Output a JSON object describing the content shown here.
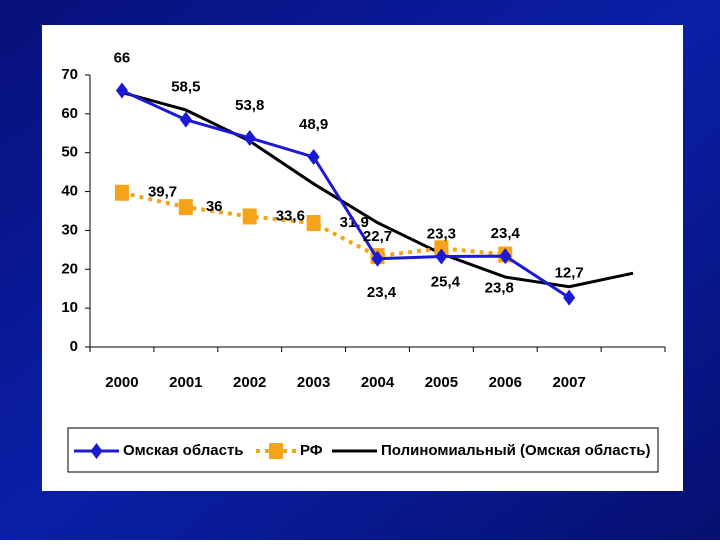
{
  "chart_data": {
    "type": "line",
    "categories": [
      "2000",
      "2001",
      "2002",
      "2003",
      "2004",
      "2005",
      "2006",
      "2007",
      null
    ],
    "series": [
      {
        "name": "Омская область",
        "color": "#1a1ad6",
        "marker": "diamond",
        "dashed": false,
        "values": [
          66,
          58.5,
          53.8,
          48.9,
          22.7,
          23.3,
          23.4,
          12.7,
          null
        ],
        "value_labels": [
          "66",
          "58,5",
          "53,8",
          "48,9",
          "22,7",
          "23,3",
          "23,4",
          "12,7",
          null
        ]
      },
      {
        "name": "РФ",
        "color": "#f5a318",
        "marker": "square",
        "dashed": true,
        "values": [
          39.7,
          36,
          33.6,
          31.9,
          23.4,
          25.4,
          23.8,
          null,
          null
        ],
        "value_labels": [
          "39,7",
          "36",
          "33,6",
          "31,9",
          "23,4",
          "25,4",
          "23,8",
          null,
          null
        ]
      },
      {
        "name": "Полиномиальный (Омская область)",
        "color": "#000000",
        "marker": "none",
        "dashed": false,
        "values": [
          65.5,
          61,
          53,
          42,
          32,
          24,
          18,
          15.5,
          19
        ]
      }
    ],
    "ylim": [
      0,
      70
    ],
    "yticks": [
      0,
      10,
      20,
      30,
      40,
      50,
      60,
      70
    ],
    "grid": false,
    "legend": "bottom"
  }
}
